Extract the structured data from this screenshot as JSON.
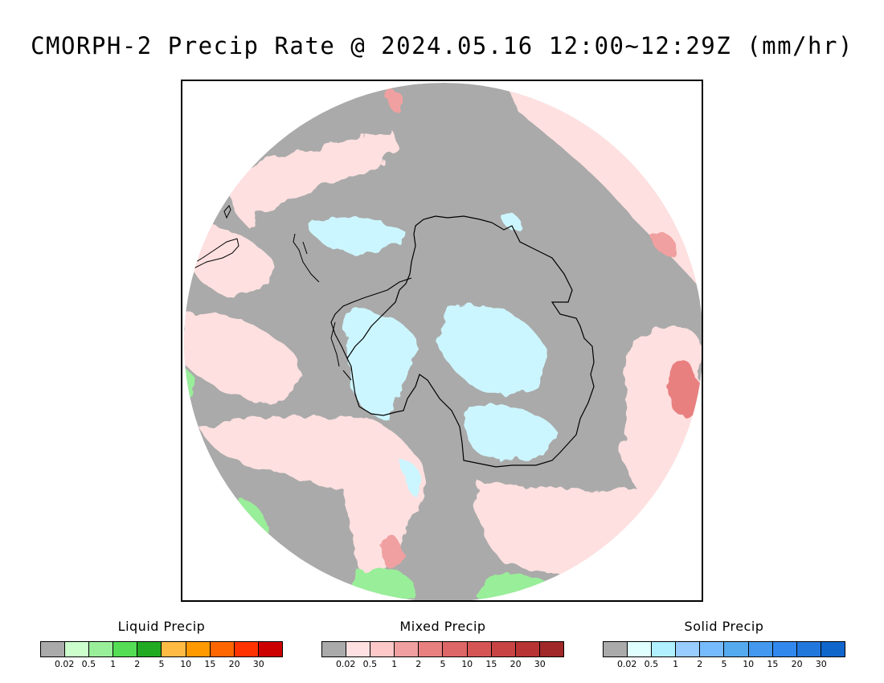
{
  "title": "CMORPH-2 Precip Rate @ 2024.05.16 12:00~12:29Z (mm/hr)",
  "map": {
    "projection": "south-polar-stereographic",
    "colors": {
      "no_precip": "#aaaaaa",
      "outside": "#ffffff",
      "coastline": "#000000"
    }
  },
  "legends": [
    {
      "title": "Liquid Precip",
      "colors": [
        "#aaaaaa",
        "#ccffcc",
        "#99ee99",
        "#55dd55",
        "#22aa22",
        "#ffbb44",
        "#ff9900",
        "#ff6600",
        "#ff3300",
        "#cc0000"
      ],
      "ticks": [
        "0.02",
        "0.5",
        "1",
        "2",
        "5",
        "10",
        "15",
        "20",
        "30"
      ]
    },
    {
      "title": "Mixed Precip",
      "colors": [
        "#aaaaaa",
        "#ffe0e0",
        "#ffc8c8",
        "#f0a0a0",
        "#e88080",
        "#dd6666",
        "#d55555",
        "#c84444",
        "#b83333",
        "#a02828"
      ],
      "ticks": [
        "0.02",
        "0.5",
        "1",
        "2",
        "5",
        "10",
        "15",
        "20",
        "30"
      ]
    },
    {
      "title": "Solid Precip",
      "colors": [
        "#aaaaaa",
        "#e0ffff",
        "#b0f0ff",
        "#99ccff",
        "#77bbff",
        "#55aaee",
        "#4499ee",
        "#3388ee",
        "#2277dd",
        "#1166cc"
      ],
      "ticks": [
        "0.02",
        "0.5",
        "1",
        "2",
        "5",
        "10",
        "15",
        "20",
        "30"
      ]
    }
  ]
}
